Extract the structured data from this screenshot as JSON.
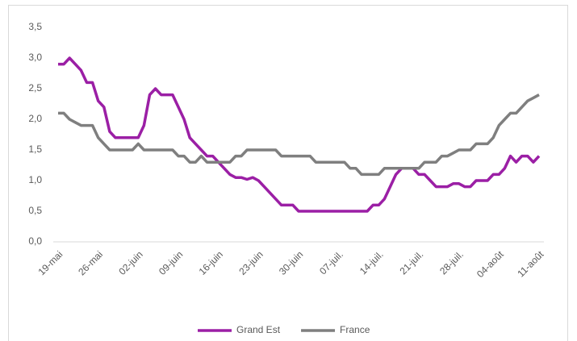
{
  "chart_data": {
    "type": "line",
    "categories": [
      "19-mai",
      null,
      null,
      null,
      null,
      null,
      null,
      "26-mai",
      null,
      null,
      null,
      null,
      null,
      null,
      "02-juin",
      null,
      null,
      null,
      null,
      null,
      null,
      "09-juin",
      null,
      null,
      null,
      null,
      null,
      null,
      "16-juin",
      null,
      null,
      null,
      null,
      null,
      null,
      "23-juin",
      null,
      null,
      null,
      null,
      null,
      null,
      "30-juin",
      null,
      null,
      null,
      null,
      null,
      null,
      "07-juil.",
      null,
      null,
      null,
      null,
      null,
      null,
      "14-juil.",
      null,
      null,
      null,
      null,
      null,
      null,
      "21-juil.",
      null,
      null,
      null,
      null,
      null,
      null,
      "28-juil.",
      null,
      null,
      null,
      null,
      null,
      null,
      "04-août",
      null,
      null,
      null,
      null,
      null,
      null,
      "11-août"
    ],
    "series": [
      {
        "name": "Grand Est",
        "color": "#9b1fa5",
        "values": [
          2.9,
          2.9,
          3.0,
          2.9,
          2.8,
          2.6,
          2.6,
          2.3,
          2.2,
          1.8,
          1.7,
          1.7,
          1.7,
          1.7,
          1.7,
          1.9,
          2.4,
          2.5,
          2.4,
          2.4,
          2.4,
          2.2,
          2.0,
          1.7,
          1.6,
          1.5,
          1.4,
          1.4,
          1.3,
          1.2,
          1.1,
          1.05,
          1.05,
          1.02,
          1.05,
          1.0,
          0.9,
          0.8,
          0.7,
          0.6,
          0.6,
          0.6,
          0.5,
          0.5,
          0.5,
          0.5,
          0.5,
          0.5,
          0.5,
          0.5,
          0.5,
          0.5,
          0.5,
          0.5,
          0.5,
          0.6,
          0.6,
          0.7,
          0.9,
          1.1,
          1.2,
          1.2,
          1.2,
          1.1,
          1.1,
          1.0,
          0.9,
          0.9,
          0.9,
          0.95,
          0.95,
          0.9,
          0.9,
          1.0,
          1.0,
          1.0,
          1.1,
          1.1,
          1.2,
          1.4,
          1.3,
          1.4,
          1.4,
          1.3,
          1.4
        ]
      },
      {
        "name": "France",
        "color": "#7f7f7f",
        "values": [
          2.1,
          2.1,
          2.0,
          1.95,
          1.9,
          1.9,
          1.9,
          1.7,
          1.6,
          1.5,
          1.5,
          1.5,
          1.5,
          1.5,
          1.6,
          1.5,
          1.5,
          1.5,
          1.5,
          1.5,
          1.5,
          1.4,
          1.4,
          1.3,
          1.3,
          1.4,
          1.3,
          1.3,
          1.3,
          1.3,
          1.3,
          1.4,
          1.4,
          1.5,
          1.5,
          1.5,
          1.5,
          1.5,
          1.5,
          1.4,
          1.4,
          1.4,
          1.4,
          1.4,
          1.4,
          1.3,
          1.3,
          1.3,
          1.3,
          1.3,
          1.3,
          1.2,
          1.2,
          1.1,
          1.1,
          1.1,
          1.1,
          1.2,
          1.2,
          1.2,
          1.2,
          1.2,
          1.2,
          1.2,
          1.3,
          1.3,
          1.3,
          1.4,
          1.4,
          1.45,
          1.5,
          1.5,
          1.5,
          1.6,
          1.6,
          1.6,
          1.7,
          1.9,
          2.0,
          2.1,
          2.1,
          2.2,
          2.3,
          2.35,
          2.4
        ]
      }
    ],
    "ylim": [
      0,
      3.5
    ],
    "yticks": [
      {
        "value": 0,
        "label": "0,0"
      },
      {
        "value": 0.5,
        "label": "0,5"
      },
      {
        "value": 1,
        "label": "1,0"
      },
      {
        "value": 1.5,
        "label": "1,5"
      },
      {
        "value": 2,
        "label": "2,0"
      },
      {
        "value": 2.5,
        "label": "2,5"
      },
      {
        "value": 3,
        "label": "3,0"
      },
      {
        "value": 3.5,
        "label": "3,5"
      }
    ],
    "grid": false,
    "legend": "bottom"
  }
}
